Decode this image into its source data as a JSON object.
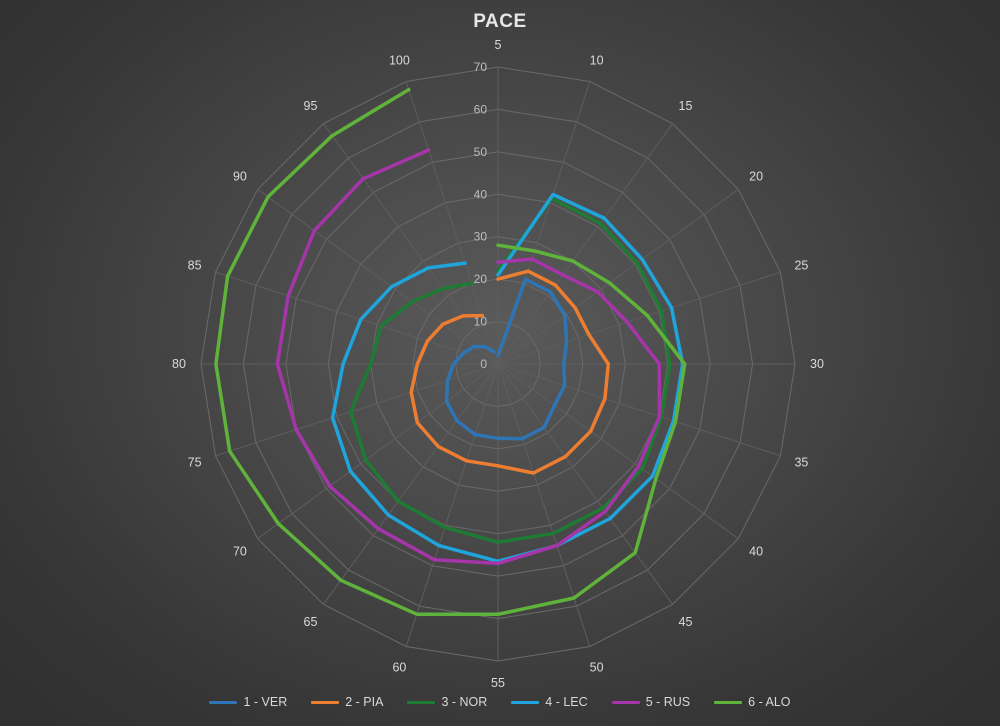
{
  "chart_data": {
    "type": "radar",
    "title": "PACE",
    "categories": [
      "5",
      "10",
      "15",
      "20",
      "25",
      "30",
      "35",
      "40",
      "45",
      "50",
      "55",
      "60",
      "65",
      "70",
      "75",
      "80",
      "85",
      "90",
      "95",
      "100"
    ],
    "radial_ticks": [
      "0",
      "10",
      "20",
      "30",
      "40",
      "50",
      "60",
      "70"
    ],
    "rlim": [
      0,
      70
    ],
    "grid": true,
    "legend_position": "bottom",
    "series": [
      {
        "name": "1 - VER",
        "color": "#2e75b6",
        "values": [
          2,
          21,
          21,
          19.5,
          17,
          15.5,
          16.5,
          16.5,
          18.5,
          18.5,
          17.5,
          17.5,
          16.5,
          15,
          12.5,
          10.5,
          8.5,
          7,
          5,
          3
        ]
      },
      {
        "name": "2 - PIA",
        "color": "#ed7d31",
        "values": [
          20,
          23,
          23,
          22.5,
          22.5,
          26,
          26.5,
          27,
          27,
          27,
          24,
          24,
          24,
          23.5,
          21.5,
          19,
          17.5,
          16,
          14,
          12
        ]
      },
      {
        "name": "3 - NOR",
        "color": "#1e7b34",
        "values": [
          22,
          41,
          41,
          40.5,
          40.5,
          40.5,
          40.5,
          42,
          42,
          42,
          42,
          40.5,
          40,
          38.5,
          36.5,
          30,
          29,
          25,
          22,
          20
        ]
      },
      {
        "name": "4 - LEC",
        "color": "#1fa4dc",
        "values": [
          21,
          42,
          42.5,
          42,
          43,
          43.5,
          43.5,
          45,
          45,
          45,
          46.5,
          45,
          44,
          43,
          41,
          36.5,
          34,
          31,
          28,
          25
        ]
      },
      {
        "name": "5 - RUS",
        "color": "#a535a8",
        "values": [
          24,
          26,
          26,
          29,
          32,
          38,
          40,
          41,
          43,
          45,
          47,
          48.5,
          48,
          49,
          50,
          52,
          52,
          53.5,
          54,
          53
        ]
      },
      {
        "name": "6 - ALO",
        "color": "#5fb33a",
        "values": [
          28,
          28,
          30,
          32.5,
          37,
          44,
          44,
          46,
          55,
          58,
          59,
          62,
          63,
          64,
          66.5,
          66.5,
          67,
          67,
          66.5,
          68
        ]
      }
    ]
  }
}
